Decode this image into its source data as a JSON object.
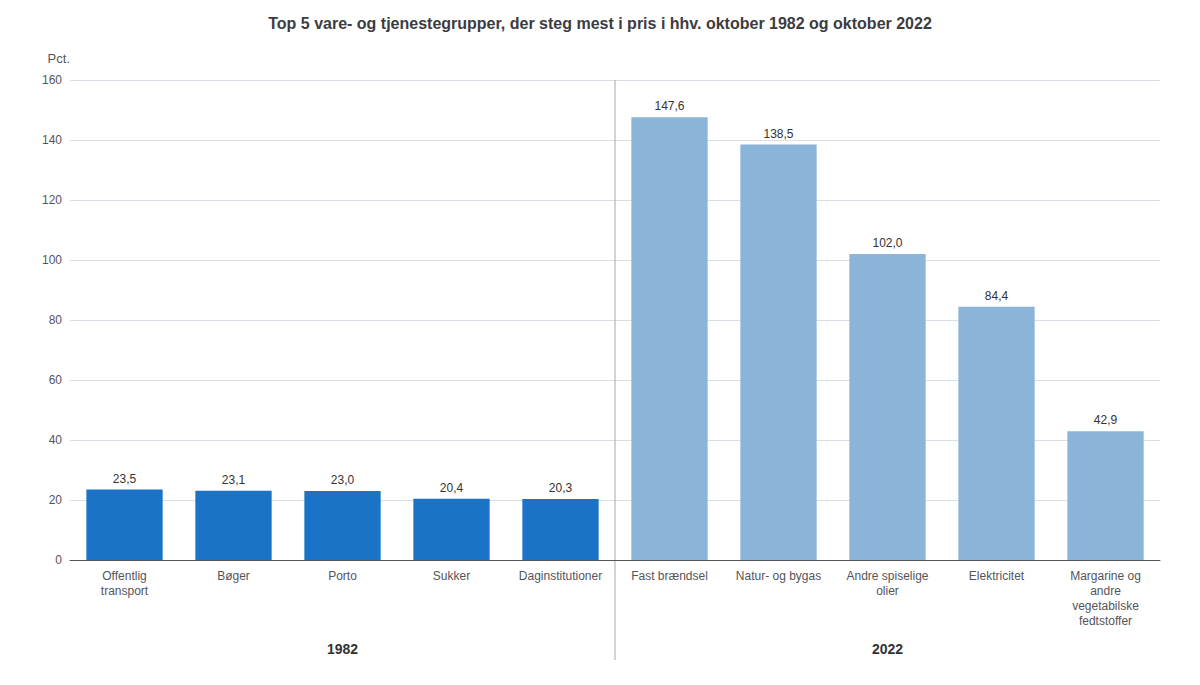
{
  "chart_data": {
    "type": "bar",
    "title": "Top 5 vare- og tjenestegrupper, der steg mest i pris i hhv. oktober 1982 og oktober 2022",
    "ylabel": "Pct.",
    "categories": [
      "Offentlig\ntransport",
      "Bøger",
      "Porto",
      "Sukker",
      "Daginstitutioner",
      "Fast brændsel",
      "Natur- og bygas",
      "Andre spiselige\nolier",
      "Elektricitet",
      "Margarine og\nandre\nvegetabilske\nfedtstoffer"
    ],
    "series": [
      {
        "name": "1982",
        "color": "#1a73c7",
        "values": [
          23.5,
          23.1,
          23.0,
          20.4,
          20.3,
          null,
          null,
          null,
          null,
          null
        ],
        "value_labels": [
          "23,5",
          "23,1",
          "23,0",
          "20,4",
          "20,3",
          null,
          null,
          null,
          null,
          null
        ]
      },
      {
        "name": "2022",
        "color": "#8ab4d8",
        "values": [
          null,
          null,
          null,
          null,
          null,
          147.6,
          138.5,
          102.0,
          84.4,
          42.9
        ],
        "value_labels": [
          null,
          null,
          null,
          null,
          null,
          "147,6",
          "138,5",
          "102,0",
          "84,4",
          "42,9"
        ]
      }
    ],
    "ylim": [
      0,
      160
    ],
    "yticks": [
      0,
      20,
      40,
      60,
      80,
      100,
      120,
      140,
      160
    ],
    "grid": true,
    "data_labels": true
  }
}
